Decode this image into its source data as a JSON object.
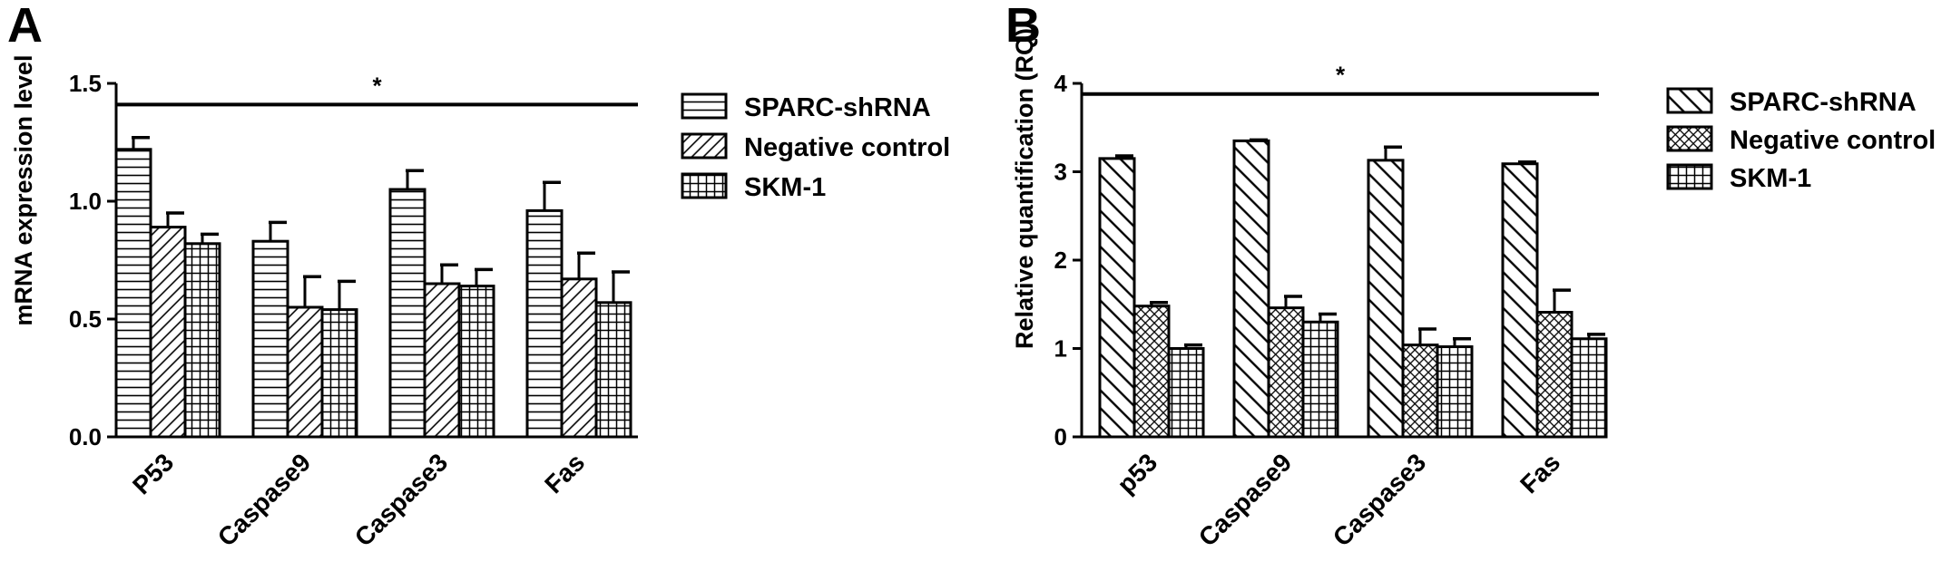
{
  "chart_data": [
    {
      "panel_label": "A",
      "type": "bar",
      "title": "",
      "xlabel": "",
      "ylabel": "mRNA expression level",
      "ylim": [
        0,
        1.5
      ],
      "yticks": [
        "0.0",
        "0.5",
        "1.0",
        "1.5"
      ],
      "categories": [
        "P53",
        "Caspase9",
        "Caspase3",
        "Fas"
      ],
      "series": [
        {
          "name": "SPARC-shRNA",
          "pattern": "horizontal",
          "values": [
            1.22,
            0.83,
            1.05,
            0.96
          ],
          "errors": [
            0.05,
            0.08,
            0.08,
            0.12
          ]
        },
        {
          "name": "Negative control",
          "pattern": "diagonal",
          "values": [
            0.89,
            0.55,
            0.65,
            0.67
          ],
          "errors": [
            0.06,
            0.13,
            0.08,
            0.11
          ]
        },
        {
          "name": "SKM-1",
          "pattern": "grid",
          "values": [
            0.82,
            0.54,
            0.64,
            0.57
          ],
          "errors": [
            0.04,
            0.12,
            0.07,
            0.13
          ]
        }
      ],
      "significance": {
        "value": 1.41,
        "label": "*"
      },
      "legend": "right",
      "grid": false
    },
    {
      "panel_label": "B",
      "type": "bar",
      "title": "",
      "xlabel": "",
      "ylabel": "Relative quantification (RQ)",
      "ylim": [
        0,
        4
      ],
      "yticks": [
        "0",
        "1",
        "2",
        "3",
        "4"
      ],
      "categories": [
        "p53",
        "Caspase9",
        "Caspase3",
        "Fas"
      ],
      "series": [
        {
          "name": "SPARC-shRNA",
          "pattern": "backslash",
          "values": [
            3.15,
            3.35,
            3.13,
            3.09
          ],
          "errors": [
            0.03,
            0.01,
            0.15,
            0.02
          ]
        },
        {
          "name": "Negative control",
          "pattern": "crosshatch",
          "values": [
            1.48,
            1.46,
            1.04,
            1.41
          ],
          "errors": [
            0.04,
            0.13,
            0.18,
            0.25
          ]
        },
        {
          "name": "SKM-1",
          "pattern": "grid",
          "values": [
            1.0,
            1.3,
            1.02,
            1.11
          ],
          "errors": [
            0.04,
            0.09,
            0.09,
            0.05
          ]
        }
      ],
      "significance": {
        "value": 3.88,
        "label": "*"
      },
      "legend": "right",
      "grid": false
    }
  ]
}
